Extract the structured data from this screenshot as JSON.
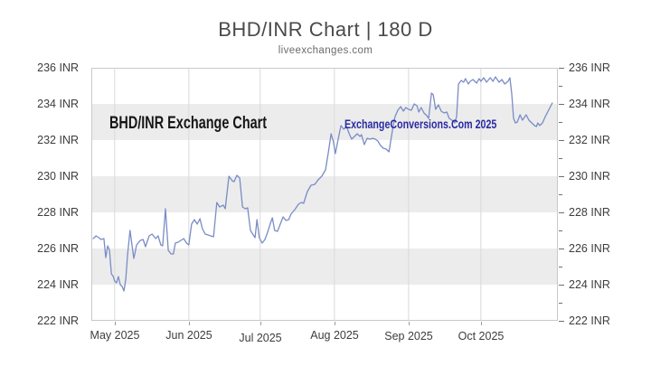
{
  "page": {
    "title": "BHD/INR Chart | 180 D",
    "subtitle": "liveexchanges.com"
  },
  "watermarks": {
    "left": "BHD/INR Exchange Chart",
    "center": "ExchangeConversions.Com 2025"
  },
  "chart_data": {
    "type": "line",
    "title": "BHD/INR Chart | 180 D",
    "subtitle": "liveexchanges.com",
    "pair": "BHD/INR",
    "period_days": 180,
    "unit_suffix": " INR",
    "ylim": [
      222,
      236
    ],
    "y_labels": [
      236,
      234,
      232,
      230,
      228,
      226,
      224,
      222
    ],
    "y_minor_tick_step": 1,
    "grid": "horizontal-bands",
    "gray_bands": [
      [
        232,
        234
      ],
      [
        228,
        230
      ],
      [
        224,
        226
      ]
    ],
    "x_ticks": [
      {
        "label": "May 2025",
        "pos": 5.0,
        "dy": 0
      },
      {
        "label": "Jun 2025",
        "pos": 20.9,
        "dy": 0
      },
      {
        "label": "Jul 2025",
        "pos": 36.2,
        "dy": 3
      },
      {
        "label": "Aug 2025",
        "pos": 52.1,
        "dy": 0
      },
      {
        "label": "Sep 2025",
        "pos": 68.0,
        "dy": 1
      },
      {
        "label": "Oct 2025",
        "pos": 83.5,
        "dy": 1
      }
    ],
    "colors": {
      "line": "#7a8cc6",
      "band": "#ececec",
      "grid": "#d9d9d9",
      "border": "#c9c9c9"
    },
    "series_name": "BHD/INR rate",
    "points": [
      [
        0.4,
        226.55
      ],
      [
        1.0,
        226.7
      ],
      [
        1.6,
        226.6
      ],
      [
        2.1,
        226.5
      ],
      [
        2.7,
        226.55
      ],
      [
        3.1,
        225.5
      ],
      [
        3.5,
        226.15
      ],
      [
        3.9,
        225.9
      ],
      [
        4.3,
        224.6
      ],
      [
        4.7,
        224.45
      ],
      [
        5.0,
        224.2
      ],
      [
        5.4,
        224.1
      ],
      [
        5.8,
        224.45
      ],
      [
        6.2,
        224.0
      ],
      [
        6.6,
        223.9
      ],
      [
        7.0,
        223.65
      ],
      [
        7.4,
        224.35
      ],
      [
        7.75,
        225.6
      ],
      [
        8.3,
        227.0
      ],
      [
        9.1,
        225.45
      ],
      [
        9.7,
        226.2
      ],
      [
        10.5,
        226.45
      ],
      [
        11.1,
        226.5
      ],
      [
        11.6,
        226.1
      ],
      [
        12.4,
        226.7
      ],
      [
        13.0,
        226.8
      ],
      [
        13.8,
        226.55
      ],
      [
        14.3,
        226.7
      ],
      [
        14.9,
        226.2
      ],
      [
        15.3,
        226.15
      ],
      [
        15.9,
        228.2
      ],
      [
        16.5,
        225.9
      ],
      [
        17.1,
        225.7
      ],
      [
        17.6,
        225.7
      ],
      [
        18.0,
        226.3
      ],
      [
        18.6,
        226.35
      ],
      [
        19.2,
        226.45
      ],
      [
        19.8,
        226.55
      ],
      [
        20.4,
        226.3
      ],
      [
        20.9,
        226.2
      ],
      [
        21.5,
        227.35
      ],
      [
        22.1,
        227.6
      ],
      [
        22.7,
        227.35
      ],
      [
        23.3,
        227.65
      ],
      [
        23.8,
        227.1
      ],
      [
        24.4,
        226.8
      ],
      [
        25.0,
        226.75
      ],
      [
        25.6,
        226.7
      ],
      [
        26.2,
        226.65
      ],
      [
        26.9,
        228.55
      ],
      [
        27.5,
        228.3
      ],
      [
        28.3,
        228.4
      ],
      [
        28.7,
        228.2
      ],
      [
        29.5,
        230.0
      ],
      [
        30.2,
        229.75
      ],
      [
        30.6,
        229.7
      ],
      [
        31.2,
        230.05
      ],
      [
        31.8,
        229.9
      ],
      [
        32.4,
        228.3
      ],
      [
        33.0,
        228.2
      ],
      [
        33.5,
        228.25
      ],
      [
        34.1,
        227.0
      ],
      [
        34.7,
        226.75
      ],
      [
        35.1,
        226.6
      ],
      [
        35.5,
        227.6
      ],
      [
        36.0,
        226.6
      ],
      [
        36.6,
        226.3
      ],
      [
        37.2,
        226.5
      ],
      [
        37.8,
        226.9
      ],
      [
        38.4,
        227.4
      ],
      [
        38.8,
        227.7
      ],
      [
        39.3,
        227.0
      ],
      [
        39.9,
        226.95
      ],
      [
        40.5,
        227.35
      ],
      [
        41.1,
        227.75
      ],
      [
        41.7,
        227.55
      ],
      [
        42.3,
        227.6
      ],
      [
        42.8,
        227.9
      ],
      [
        43.6,
        228.15
      ],
      [
        44.4,
        228.45
      ],
      [
        45.0,
        228.55
      ],
      [
        45.5,
        228.5
      ],
      [
        46.3,
        229.15
      ],
      [
        47.1,
        229.5
      ],
      [
        47.9,
        229.55
      ],
      [
        48.6,
        229.8
      ],
      [
        49.4,
        230.0
      ],
      [
        50.2,
        230.35
      ],
      [
        50.8,
        231.3
      ],
      [
        51.4,
        232.35
      ],
      [
        51.9,
        231.9
      ],
      [
        52.3,
        231.25
      ],
      [
        52.9,
        232.05
      ],
      [
        53.5,
        232.8
      ],
      [
        54.1,
        232.6
      ],
      [
        54.7,
        232.75
      ],
      [
        55.2,
        232.4
      ],
      [
        55.8,
        232.05
      ],
      [
        56.4,
        232.2
      ],
      [
        57.0,
        232.35
      ],
      [
        57.6,
        232.2
      ],
      [
        57.9,
        232.3
      ],
      [
        58.5,
        231.75
      ],
      [
        59.1,
        232.1
      ],
      [
        59.7,
        232.05
      ],
      [
        60.3,
        232.1
      ],
      [
        60.9,
        232.05
      ],
      [
        61.4,
        231.95
      ],
      [
        62.0,
        231.7
      ],
      [
        62.6,
        231.55
      ],
      [
        63.2,
        231.5
      ],
      [
        63.8,
        231.35
      ],
      [
        64.2,
        232.0
      ],
      [
        64.7,
        232.8
      ],
      [
        65.1,
        233.3
      ],
      [
        65.7,
        233.65
      ],
      [
        66.3,
        233.85
      ],
      [
        66.9,
        233.6
      ],
      [
        67.4,
        233.8
      ],
      [
        68.0,
        233.7
      ],
      [
        68.6,
        233.65
      ],
      [
        69.2,
        234.0
      ],
      [
        69.8,
        233.9
      ],
      [
        70.2,
        233.55
      ],
      [
        70.7,
        233.8
      ],
      [
        71.3,
        233.5
      ],
      [
        71.9,
        233.35
      ],
      [
        72.3,
        233.2
      ],
      [
        72.9,
        234.6
      ],
      [
        73.3,
        234.5
      ],
      [
        73.8,
        233.7
      ],
      [
        74.4,
        233.95
      ],
      [
        75.0,
        233.6
      ],
      [
        75.6,
        233.5
      ],
      [
        76.2,
        233.55
      ],
      [
        76.7,
        233.2
      ],
      [
        77.3,
        233.1
      ],
      [
        77.9,
        232.95
      ],
      [
        78.3,
        233.3
      ],
      [
        78.7,
        235.1
      ],
      [
        79.3,
        235.3
      ],
      [
        79.8,
        235.2
      ],
      [
        80.2,
        235.4
      ],
      [
        80.8,
        235.1
      ],
      [
        81.2,
        235.25
      ],
      [
        81.8,
        235.35
      ],
      [
        82.6,
        235.15
      ],
      [
        83.1,
        235.4
      ],
      [
        83.5,
        235.25
      ],
      [
        84.1,
        235.45
      ],
      [
        84.7,
        235.2
      ],
      [
        85.5,
        235.45
      ],
      [
        86.1,
        235.25
      ],
      [
        86.6,
        235.5
      ],
      [
        87.4,
        235.2
      ],
      [
        88.0,
        235.35
      ],
      [
        88.6,
        235.1
      ],
      [
        89.3,
        235.25
      ],
      [
        89.7,
        235.45
      ],
      [
        90.1,
        234.6
      ],
      [
        90.5,
        233.2
      ],
      [
        90.9,
        232.95
      ],
      [
        91.3,
        233.0
      ],
      [
        91.9,
        233.4
      ],
      [
        92.4,
        233.1
      ],
      [
        93.2,
        233.4
      ],
      [
        93.8,
        233.1
      ],
      [
        94.4,
        232.95
      ],
      [
        95.0,
        232.8
      ],
      [
        95.4,
        232.75
      ],
      [
        95.7,
        232.95
      ],
      [
        96.1,
        232.8
      ],
      [
        96.7,
        232.95
      ],
      [
        97.3,
        233.3
      ],
      [
        97.9,
        233.6
      ],
      [
        98.5,
        233.9
      ],
      [
        98.8,
        234.05
      ]
    ]
  }
}
